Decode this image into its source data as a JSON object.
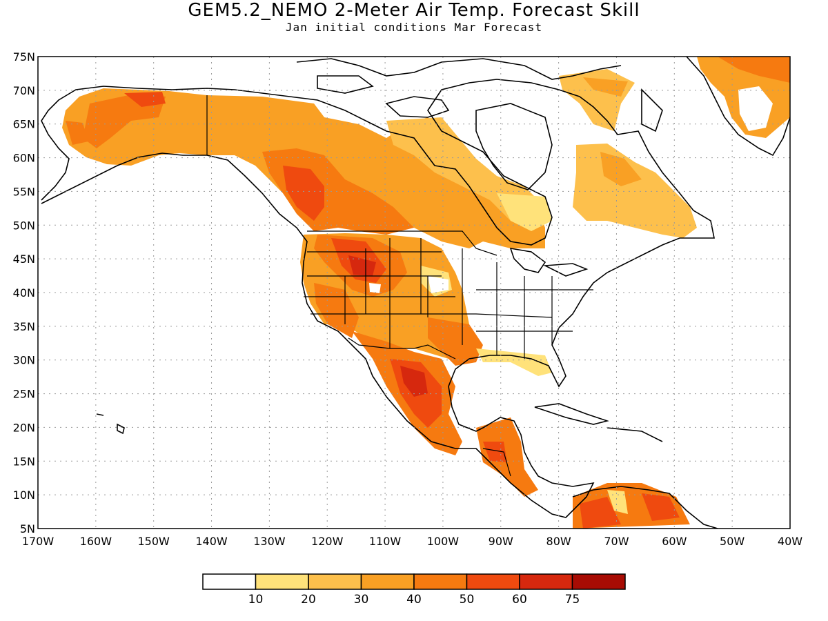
{
  "title": "GEM5.2_NEMO 2-Meter Air Temp. Forecast Skill",
  "subtitle": "Jan initial conditions   Mar Forecast",
  "map": {
    "lat_ticks": [
      "75N",
      "70N",
      "65N",
      "60N",
      "55N",
      "50N",
      "45N",
      "40N",
      "35N",
      "30N",
      "25N",
      "20N",
      "15N",
      "10N",
      "5N"
    ],
    "lon_ticks": [
      "170W",
      "160W",
      "150W",
      "140W",
      "130W",
      "120W",
      "110W",
      "100W",
      "90W",
      "80W",
      "70W",
      "60W",
      "50W",
      "40W"
    ],
    "lon_range": [
      -170,
      -40
    ],
    "lat_range": [
      5,
      75
    ],
    "grid": "dotted",
    "land_outline_color": "#000000"
  },
  "legend": {
    "labels": [
      "10",
      "20",
      "30",
      "40",
      "50",
      "60",
      "75"
    ],
    "colors": [
      "#ffffff",
      "#ffe27a",
      "#fdc04c",
      "#f9a024",
      "#f67a10",
      "#ef4a0f",
      "#d6280e",
      "#a80c04"
    ]
  }
}
